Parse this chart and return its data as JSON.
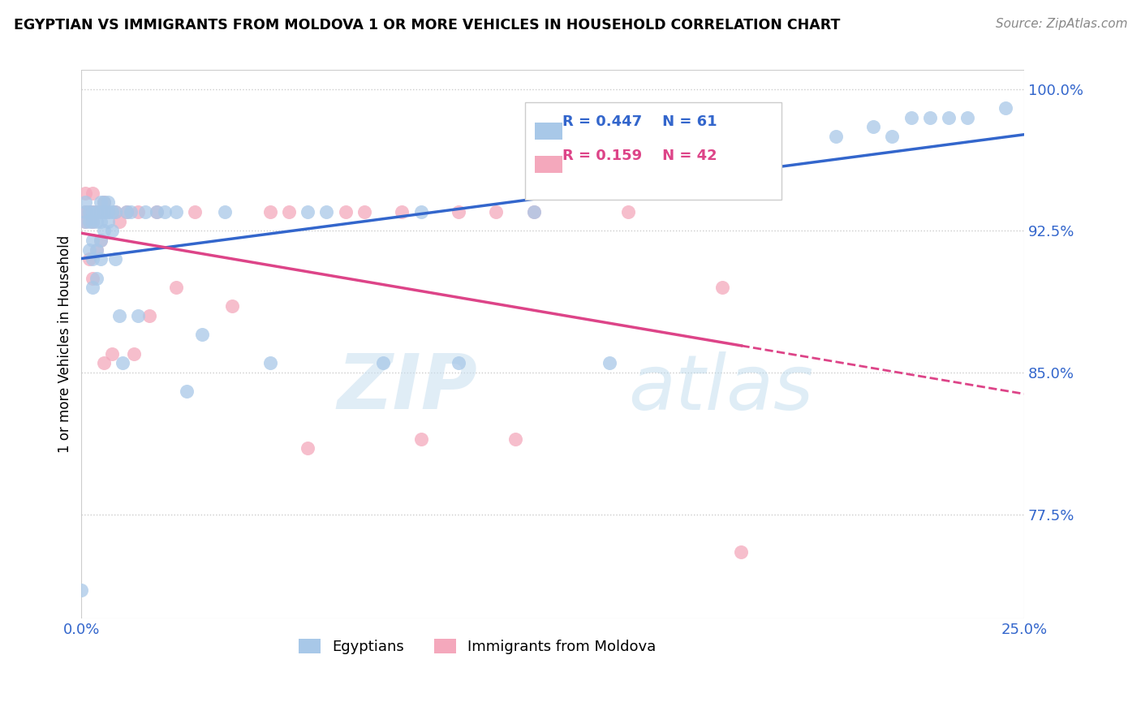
{
  "title": "EGYPTIAN VS IMMIGRANTS FROM MOLDOVA 1 OR MORE VEHICLES IN HOUSEHOLD CORRELATION CHART",
  "source": "Source: ZipAtlas.com",
  "ylabel_label": "1 or more Vehicles in Household",
  "legend_blue_r": "R = 0.447",
  "legend_blue_n": "N = 61",
  "legend_pink_r": "R = 0.159",
  "legend_pink_n": "N = 42",
  "blue_color": "#a8c8e8",
  "pink_color": "#f4a8bc",
  "blue_line_color": "#3366cc",
  "pink_line_color": "#dd4488",
  "watermark_zip": "ZIP",
  "watermark_atlas": "atlas",
  "xlim": [
    0.0,
    0.25
  ],
  "ylim": [
    0.72,
    1.01
  ],
  "yticks": [
    0.775,
    0.85,
    0.925,
    1.0
  ],
  "ytick_labels": [
    "77.5%",
    "85.0%",
    "92.5%",
    "100.0%"
  ],
  "blue_points_x": [
    0.001,
    0.001,
    0.001,
    0.002,
    0.002,
    0.002,
    0.003,
    0.003,
    0.003,
    0.003,
    0.003,
    0.004,
    0.004,
    0.004,
    0.004,
    0.005,
    0.005,
    0.005,
    0.005,
    0.005,
    0.006,
    0.006,
    0.006,
    0.007,
    0.007,
    0.007,
    0.008,
    0.008,
    0.009,
    0.009,
    0.01,
    0.011,
    0.012,
    0.013,
    0.015,
    0.017,
    0.02,
    0.022,
    0.025,
    0.028,
    0.032,
    0.038,
    0.05,
    0.06,
    0.065,
    0.08,
    0.09,
    0.1,
    0.12,
    0.14,
    0.16,
    0.18,
    0.2,
    0.21,
    0.215,
    0.22,
    0.225,
    0.23,
    0.235,
    0.245,
    0.0
  ],
  "blue_points_y": [
    0.93,
    0.935,
    0.94,
    0.915,
    0.93,
    0.935,
    0.895,
    0.91,
    0.92,
    0.93,
    0.935,
    0.9,
    0.915,
    0.93,
    0.935,
    0.91,
    0.92,
    0.93,
    0.935,
    0.94,
    0.925,
    0.935,
    0.94,
    0.93,
    0.935,
    0.94,
    0.925,
    0.935,
    0.91,
    0.935,
    0.88,
    0.855,
    0.935,
    0.935,
    0.88,
    0.935,
    0.935,
    0.935,
    0.935,
    0.84,
    0.87,
    0.935,
    0.855,
    0.935,
    0.935,
    0.855,
    0.935,
    0.855,
    0.935,
    0.855,
    0.97,
    0.975,
    0.975,
    0.98,
    0.975,
    0.985,
    0.985,
    0.985,
    0.985,
    0.99,
    0.735
  ],
  "pink_points_x": [
    0.001,
    0.001,
    0.001,
    0.002,
    0.002,
    0.003,
    0.003,
    0.003,
    0.003,
    0.004,
    0.004,
    0.005,
    0.005,
    0.006,
    0.006,
    0.006,
    0.007,
    0.008,
    0.009,
    0.01,
    0.012,
    0.014,
    0.015,
    0.018,
    0.02,
    0.025,
    0.03,
    0.04,
    0.05,
    0.055,
    0.06,
    0.07,
    0.075,
    0.085,
    0.09,
    0.1,
    0.11,
    0.115,
    0.12,
    0.145,
    0.17,
    0.175
  ],
  "pink_points_y": [
    0.93,
    0.935,
    0.945,
    0.91,
    0.935,
    0.9,
    0.93,
    0.935,
    0.945,
    0.915,
    0.935,
    0.92,
    0.935,
    0.855,
    0.935,
    0.94,
    0.935,
    0.86,
    0.935,
    0.93,
    0.935,
    0.86,
    0.935,
    0.88,
    0.935,
    0.895,
    0.935,
    0.885,
    0.935,
    0.935,
    0.81,
    0.935,
    0.935,
    0.935,
    0.815,
    0.935,
    0.935,
    0.815,
    0.935,
    0.935,
    0.895,
    0.755
  ]
}
